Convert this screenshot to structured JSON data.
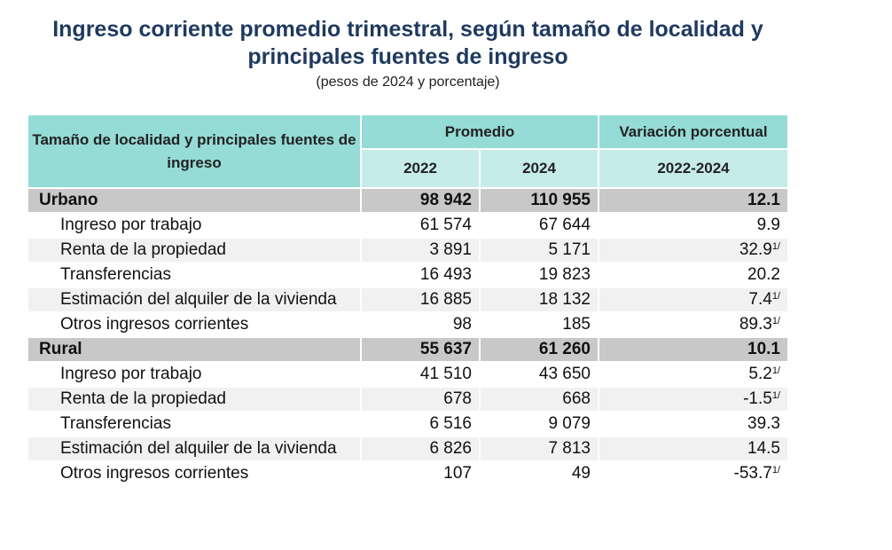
{
  "title": "Ingreso corriente promedio trimestral, según tamaño de localidad y principales fuentes de ingreso",
  "title_line1": "Ingreso corriente promedio trimestral, según tamaño de localidad y",
  "title_line2": "principales fuentes de ingreso",
  "subtitle": "(pesos de 2024 y porcentaje)",
  "header": {
    "label": "Tamaño de localidad y principales fuentes de ingreso",
    "promedio": "Promedio",
    "variacion": "Variación porcentual",
    "y2022": "2022",
    "y2024": "2024",
    "period": "2022-2024"
  },
  "footnote_mark": "1/",
  "colors": {
    "title": "#1f3a5f",
    "header_dark": "#95dbd6",
    "header_light": "#c6ecea",
    "group_row": "#c8c8c8",
    "alt_row": "#f1f1f1"
  },
  "rows": [
    {
      "type": "group",
      "name": "Urbano",
      "v2022": "98 942",
      "v2024": "110 955",
      "var": "12.1",
      "note": false
    },
    {
      "type": "item",
      "name": "Ingreso por trabajo",
      "v2022": "61 574",
      "v2024": "67 644",
      "var": "9.9",
      "note": false
    },
    {
      "type": "item",
      "name": "Renta de la propiedad",
      "v2022": "3 891",
      "v2024": "5 171",
      "var": "32.9",
      "note": true
    },
    {
      "type": "item",
      "name": "Transferencias",
      "v2022": "16 493",
      "v2024": "19 823",
      "var": "20.2",
      "note": false
    },
    {
      "type": "item",
      "name": "Estimación del alquiler de la vivienda",
      "v2022": "16 885",
      "v2024": "18 132",
      "var": "7.4",
      "note": true
    },
    {
      "type": "item",
      "name": "Otros ingresos corrientes",
      "v2022": "98",
      "v2024": "185",
      "var": "89.3",
      "note": true
    },
    {
      "type": "group",
      "name": "Rural",
      "v2022": "55 637",
      "v2024": "61 260",
      "var": "10.1",
      "note": false
    },
    {
      "type": "item",
      "name": "Ingreso por trabajo",
      "v2022": "41 510",
      "v2024": "43 650",
      "var": "5.2",
      "note": true
    },
    {
      "type": "item",
      "name": "Renta de la propiedad",
      "v2022": "678",
      "v2024": "668",
      "var": "-1.5",
      "note": true
    },
    {
      "type": "item",
      "name": "Transferencias",
      "v2022": "6 516",
      "v2024": "9 079",
      "var": "39.3",
      "note": false
    },
    {
      "type": "item",
      "name": "Estimación del alquiler de la vivienda",
      "v2022": "6 826",
      "v2024": "7 813",
      "var": "14.5",
      "note": false
    },
    {
      "type": "item",
      "name": "Otros ingresos corrientes",
      "v2022": "107",
      "v2024": "49",
      "var": "-53.7",
      "note": true
    }
  ]
}
